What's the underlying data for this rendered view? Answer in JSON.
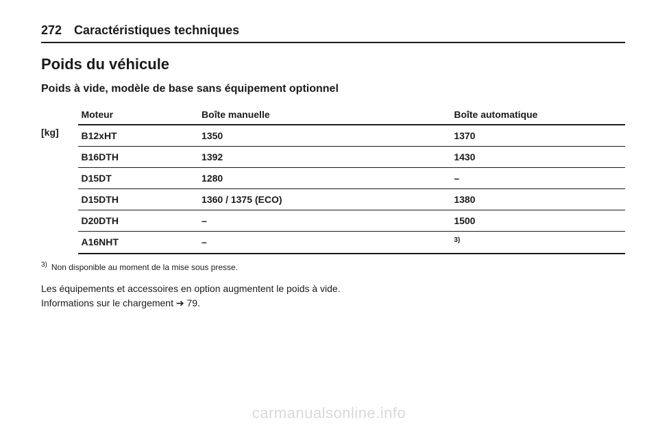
{
  "page_number": "272",
  "chapter_title": "Caractéristiques techniques",
  "heading1": "Poids du véhicule",
  "heading2": "Poids à vide, modèle de base sans équipement optionnel",
  "unit_label": "[kg]",
  "table": {
    "columns": {
      "motor": "Moteur",
      "manual": "Boîte manuelle",
      "auto": "Boîte automatique"
    },
    "rows": [
      {
        "motor": "B12xHT",
        "manual": "1350",
        "auto": "1370"
      },
      {
        "motor": "B16DTH",
        "manual": "1392",
        "auto": "1430"
      },
      {
        "motor": "D15DT",
        "manual": "1280",
        "auto": "–"
      },
      {
        "motor": "D15DTH",
        "manual": "1360 / 1375 (ECO)",
        "auto": "1380"
      },
      {
        "motor": "D20DTH",
        "manual": "–",
        "auto": "1500"
      },
      {
        "motor": "A16NHT",
        "manual": "–",
        "auto": "3)",
        "sup": true
      }
    ]
  },
  "footnote_marker": "3)",
  "footnote_text": "Non disponible au moment de la mise sous presse.",
  "body_line1": "Les équipements et accessoires en option augmentent le poids à vide.",
  "body_line2_a": "Informations sur le chargement ",
  "body_line2_sym": "➔",
  "body_line2_b": " 79.",
  "watermark": "carmanualsonline.info"
}
